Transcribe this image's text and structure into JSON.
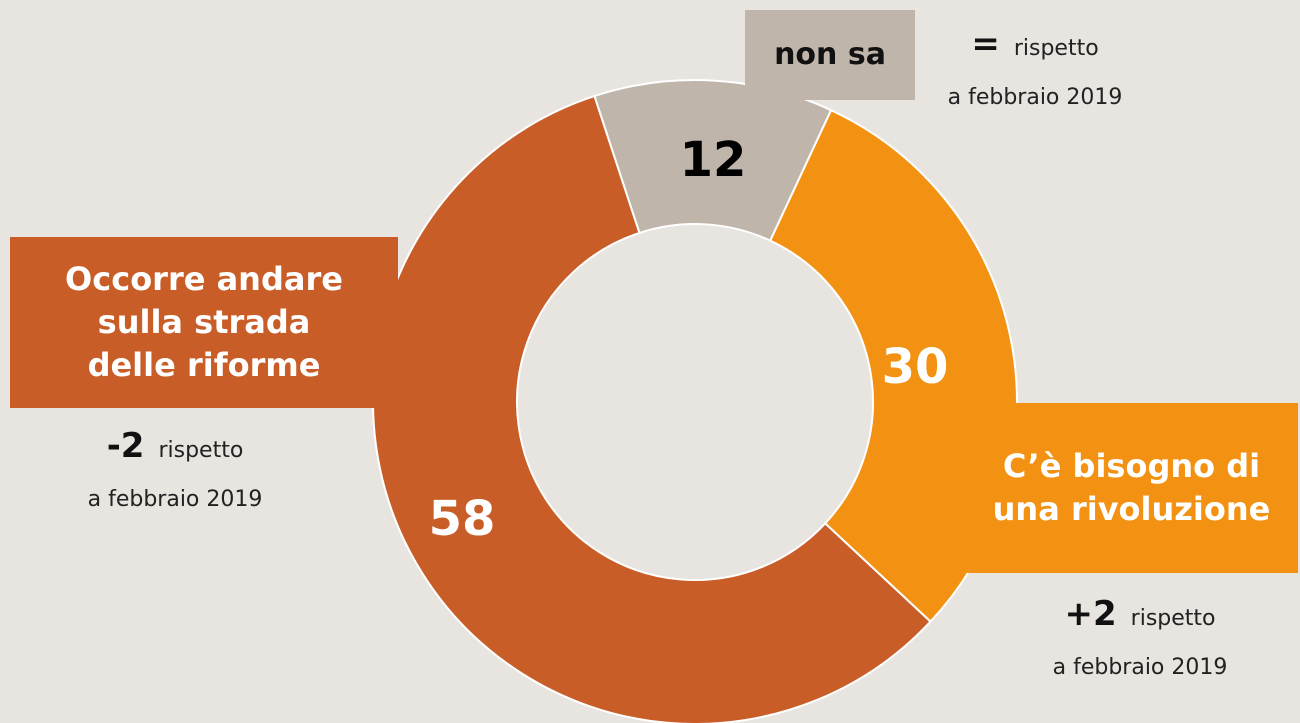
{
  "chart_data": {
    "type": "donut",
    "categories": [
      "non sa",
      "C’è bisogno di una rivoluzione",
      "Occorre andare sulla strada delle riforme"
    ],
    "values": [
      12,
      30,
      58
    ],
    "colors": [
      "#bfb5ab",
      "#f39212",
      "#c95d27"
    ],
    "value_label_colors": [
      "#000000",
      "#ffffff",
      "#ffffff"
    ],
    "change_labels": [
      "=",
      "+2",
      "-2"
    ],
    "change_text": "rispetto",
    "change_reference": "a febbraio 2019"
  }
}
